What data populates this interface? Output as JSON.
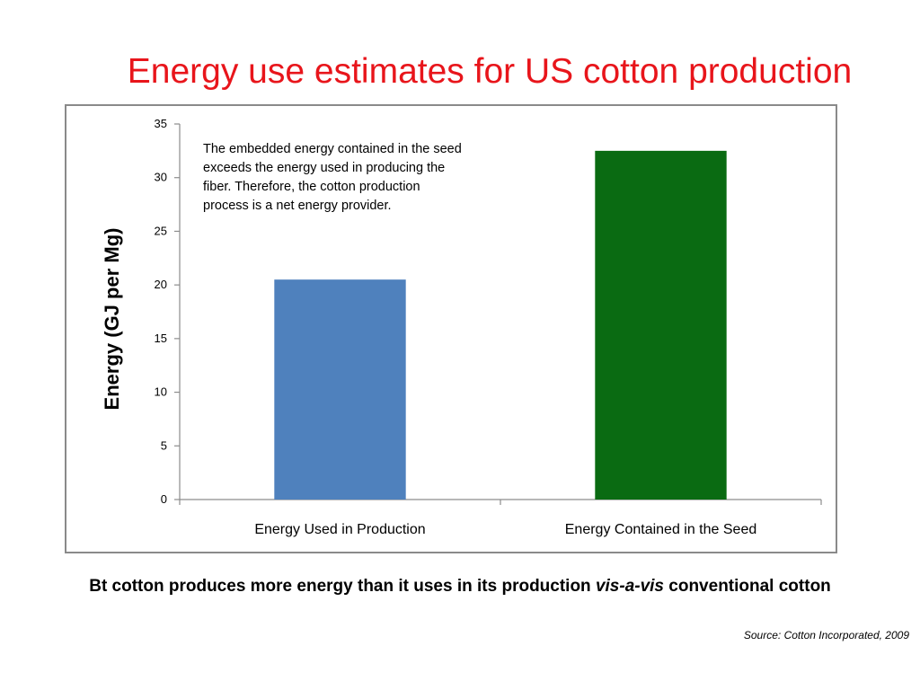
{
  "slide": {
    "title": "Energy use estimates for US cotton production",
    "caption_part1": "Bt cotton produces more energy than it uses in its production ",
    "caption_italic": "vis-a-vis",
    "caption_part2": " conventional cotton",
    "source": "Source: Cotton Incorporated, 2009"
  },
  "chart_data": {
    "type": "bar",
    "categories": [
      "Energy Used in Production",
      "Energy Contained in the Seed"
    ],
    "values": [
      20.5,
      32.5
    ],
    "colors": [
      "#4f81bd",
      "#0a6b12"
    ],
    "title": "",
    "xlabel": "",
    "ylabel": "Energy (GJ per Mg)",
    "ylim": [
      0,
      35
    ],
    "yticks": [
      0,
      5,
      10,
      15,
      20,
      25,
      30,
      35
    ],
    "grid": false,
    "annotation_lines": [
      "The embedded energy contained in the seed",
      "exceeds the energy used in producing the",
      "fiber.  Therefore, the cotton production",
      "process is a net energy provider."
    ]
  }
}
